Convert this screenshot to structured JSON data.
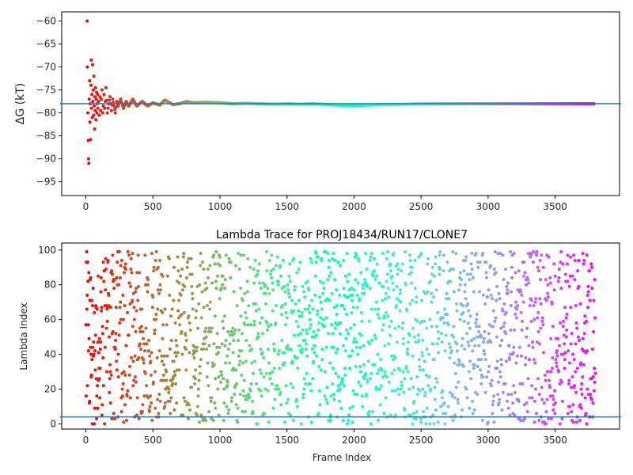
{
  "chart_data": [
    {
      "type": "scatter",
      "title": "",
      "ylabel": "ΔG (kT)",
      "xlabel": "",
      "xlim": [
        -180,
        3980
      ],
      "ylim": [
        -98,
        -58
      ],
      "xticks": [
        0,
        500,
        1000,
        1500,
        2000,
        2500,
        3000,
        3500
      ],
      "yticks": [
        -60,
        -65,
        -70,
        -75,
        -80,
        -85,
        -90,
        -95
      ],
      "hline": -78,
      "hline_color": "#1f77b4",
      "colormap": "rainbow (red at frame 0 → violet at frame 3800)",
      "marker_size": "small dots",
      "series": [
        {
          "points": [
            [
              10,
              -60
            ],
            [
              12,
              -70
            ],
            [
              15,
              -80
            ],
            [
              18,
              -86
            ],
            [
              20,
              -90
            ],
            [
              22,
              -91
            ],
            [
              25,
              -77
            ],
            [
              28,
              -73
            ],
            [
              30,
              -82
            ],
            [
              32,
              -78
            ],
            [
              35,
              -85.8
            ],
            [
              38,
              -74
            ],
            [
              40,
              -68.5
            ],
            [
              42,
              -79
            ],
            [
              45,
              -76
            ],
            [
              48,
              -81
            ],
            [
              50,
              -69.5
            ],
            [
              52,
              -77.5
            ],
            [
              55,
              -75
            ],
            [
              58,
              -80.5
            ],
            [
              60,
              -72
            ],
            [
              62,
              -78.5
            ],
            [
              65,
              -83.5
            ],
            [
              68,
              -76.5
            ],
            [
              70,
              -79.5
            ],
            [
              72,
              -74.5
            ],
            [
              75,
              -81.5
            ],
            [
              78,
              -77
            ],
            [
              80,
              -75.5
            ],
            [
              82,
              -80
            ],
            [
              85,
              -78
            ],
            [
              88,
              -76
            ],
            [
              90,
              -79
            ],
            [
              95,
              -77.5
            ],
            [
              100,
              -80.5
            ],
            [
              105,
              -76.5
            ],
            [
              110,
              -79.5
            ],
            [
              115,
              -77
            ],
            [
              120,
              -75
            ],
            [
              125,
              -80
            ],
            [
              130,
              -78.5
            ],
            [
              135,
              -76
            ],
            [
              140,
              -79
            ],
            [
              145,
              -77.5
            ],
            [
              150,
              -74.5
            ],
            [
              160,
              -80
            ],
            [
              170,
              -78
            ],
            [
              180,
              -76.5
            ],
            [
              190,
              -79.5
            ],
            [
              200,
              -77
            ],
            [
              210,
              -78.5
            ],
            [
              220,
              -80
            ],
            [
              230,
              -77.5
            ],
            [
              240,
              -78.5
            ],
            [
              260,
              -77
            ],
            [
              280,
              -79
            ],
            [
              300,
              -77.5
            ],
            [
              320,
              -78.5
            ],
            [
              350,
              -77
            ],
            [
              380,
              -78.5
            ],
            [
              420,
              -77.5
            ],
            [
              460,
              -78.5
            ],
            [
              500,
              -77.8
            ],
            [
              550,
              -78.3
            ],
            [
              590,
              -77.2
            ],
            [
              650,
              -78.2
            ],
            [
              700,
              -78
            ],
            [
              750,
              -77.5
            ],
            [
              800,
              -77.8
            ],
            [
              900,
              -77.7
            ],
            [
              1000,
              -77.8
            ],
            [
              1100,
              -78
            ],
            [
              1200,
              -77.9
            ],
            [
              1300,
              -78
            ],
            [
              1400,
              -78.1
            ],
            [
              1500,
              -78
            ],
            [
              1600,
              -78.1
            ],
            [
              1700,
              -78
            ],
            [
              1800,
              -78.2
            ],
            [
              1900,
              -78.3
            ],
            [
              2000,
              -78.4
            ],
            [
              2100,
              -78.3
            ],
            [
              2200,
              -78.2
            ],
            [
              2300,
              -78.2
            ],
            [
              2400,
              -78.1
            ],
            [
              2500,
              -78
            ],
            [
              2600,
              -78
            ],
            [
              2700,
              -78
            ],
            [
              2800,
              -78
            ],
            [
              2900,
              -78
            ],
            [
              3000,
              -78
            ],
            [
              3100,
              -78
            ],
            [
              3200,
              -78
            ],
            [
              3300,
              -78
            ],
            [
              3400,
              -78
            ],
            [
              3500,
              -78
            ],
            [
              3600,
              -78
            ],
            [
              3700,
              -78
            ],
            [
              3790,
              -78
            ]
          ]
        }
      ]
    },
    {
      "type": "scatter",
      "title": "Lambda Trace for PROJ18434/RUN17/CLONE7",
      "xlabel": "Frame Index",
      "ylabel": "Lambda Index",
      "xlim": [
        -180,
        3980
      ],
      "ylim": [
        -3,
        104
      ],
      "xticks": [
        0,
        500,
        1000,
        1500,
        2000,
        2500,
        3000,
        3500
      ],
      "yticks": [
        0,
        20,
        40,
        60,
        80,
        100
      ],
      "hline": 4,
      "hline_color": "#1f77b4",
      "colormap": "rainbow (red at frame 0 → violet at frame 3800)",
      "frame_range": [
        0,
        3800
      ],
      "frame_step": 2,
      "lambda_range": [
        0,
        99
      ],
      "lambda_seed": 18434,
      "series": []
    }
  ]
}
